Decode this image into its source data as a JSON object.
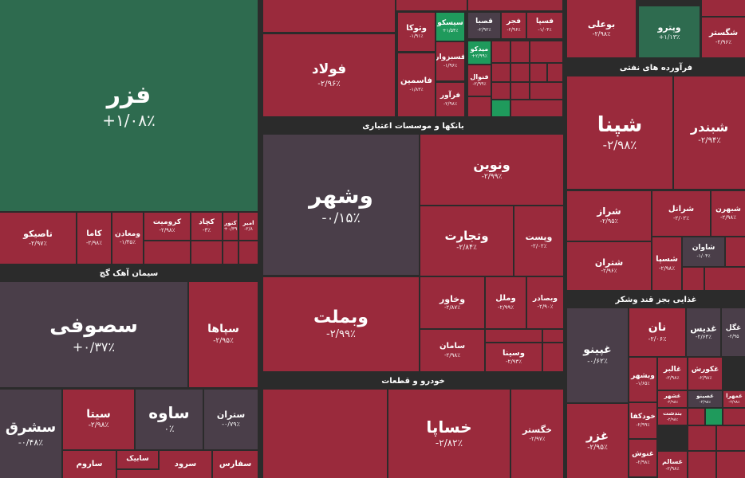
{
  "sectors": [
    "سیمان آهک گچ",
    "بانکها و موسسات اعتباری",
    "خودرو و قطعات",
    "فرآورده های نفتی",
    "غذایی بجز قند وشکر"
  ],
  "tiles": [
    {
      "name": "فزر",
      "change": "+۱/۰۸٪"
    },
    {
      "name": "تاصیکو",
      "change": "-۲/۹۷٪"
    },
    {
      "name": "کاما",
      "change": "-۲/۹۸٪"
    },
    {
      "name": "ومعادن",
      "change": "-۱/۳۵٪"
    },
    {
      "name": "کرومیت",
      "change": "-۲/۹۸٪"
    },
    {
      "name": "کچاد",
      "change": "-۳٪"
    },
    {
      "name": "کنور",
      "change": "+۰/۳۹"
    },
    {
      "name": "امیر",
      "change": "-۲/۸"
    },
    {
      "name": "سصوفی",
      "change": "+۰/۳۷٪"
    },
    {
      "name": "سپاها",
      "change": "-۲/۹۵٪"
    },
    {
      "name": "سشرق",
      "change": "-۰/۴۸٪"
    },
    {
      "name": "سیتا",
      "change": "-۲/۹۸٪"
    },
    {
      "name": "ساوه",
      "change": "۰٪"
    },
    {
      "name": "ستران",
      "change": "-۰/۷۹٪"
    },
    {
      "name": "ساروم",
      "change": null
    },
    {
      "name": "سابیک",
      "change": null
    },
    {
      "name": "سرود",
      "change": null
    },
    {
      "name": "سفارس",
      "change": null
    },
    {
      "name": "فولاد",
      "change": "-۲/۹۶٪"
    },
    {
      "name": "وتوکا",
      "change": "-۱/۹۱٪"
    },
    {
      "name": "سیسکو",
      "change": "+۱/۵۴٪"
    },
    {
      "name": "قصبا",
      "change": "-۲/۹۲٪"
    },
    {
      "name": "فجر",
      "change": "-۲/۹۶٪"
    },
    {
      "name": "فسپا",
      "change": "-۱/۰۴٪"
    },
    {
      "name": "فاسمین",
      "change": "-۱/۸۳٪"
    },
    {
      "name": "فسبزوار",
      "change": "-۱/۹۶٪"
    },
    {
      "name": "میدکو",
      "change": "+۲/۹۹٪"
    },
    {
      "name": "فنوال",
      "change": "-۲/۹۹٪"
    },
    {
      "name": "فرآور",
      "change": "-۲/۹۸٪"
    },
    {
      "name": "وشهر",
      "change": "-۰/۱۵٪"
    },
    {
      "name": "ونوین",
      "change": "-۲/۹۹٪"
    },
    {
      "name": "وتجارت",
      "change": "-۲/۸۴٪"
    },
    {
      "name": "وپست",
      "change": "-۲/۰۲٪"
    },
    {
      "name": "وبملت",
      "change": "-۲/۹۹٪"
    },
    {
      "name": "وخاور",
      "change": "-۲/۸۷٪"
    },
    {
      "name": "وملل",
      "change": "-۲/۹۹٪"
    },
    {
      "name": "وبصادر",
      "change": "-۲/۹۰٪"
    },
    {
      "name": "سامان",
      "change": "-۲/۹۸٪"
    },
    {
      "name": "وسینا",
      "change": "-۲/۹۳٪"
    },
    {
      "name": "خساپا",
      "change": "-۲/۸۲٪"
    },
    {
      "name": "خگستر",
      "change": "-۲/۹۷٪"
    },
    {
      "name": "بوعلی",
      "change": "-۲/۹۸٪"
    },
    {
      "name": "وپترو",
      "change": "+۱/۱۳٪"
    },
    {
      "name": "شگستر",
      "change": "-۲/۹۶٪"
    },
    {
      "name": "شپنا",
      "change": "-۲/۹۸٪"
    },
    {
      "name": "شبندر",
      "change": "-۲/۹۴٪"
    },
    {
      "name": "شراز",
      "change": "-۲/۹۵٪"
    },
    {
      "name": "شرانل",
      "change": "-۲/۰۲٪"
    },
    {
      "name": "شبهرن",
      "change": "-۲/۹۸٪"
    },
    {
      "name": "شتران",
      "change": "-۲/۹۶٪"
    },
    {
      "name": "شسپا",
      "change": "-۲/۹۸٪"
    },
    {
      "name": "شاوان",
      "change": "-۱/۰۴٪"
    },
    {
      "name": "غپینو",
      "change": "-۰/۶۲٪"
    },
    {
      "name": "نان",
      "change": "-۲/۰۶٪"
    },
    {
      "name": "غدیس",
      "change": "-۲/۶۴٪"
    },
    {
      "name": "غگل",
      "change": "-۲/۹۵"
    },
    {
      "name": "غزر",
      "change": "-۲/۹۵٪"
    },
    {
      "name": "وبشهر",
      "change": "-۱/۶۵٪"
    },
    {
      "name": "غالبر",
      "change": "-۲/۹۸٪"
    },
    {
      "name": "غکورش",
      "change": "-۲/۹۸٪"
    },
    {
      "name": "خودکفا",
      "change": "-۲/۹۹٪"
    },
    {
      "name": "غنوش",
      "change": "-۲/۹۸٪"
    },
    {
      "name": "غشهر",
      "change": "-۲/۹۸٪"
    },
    {
      "name": "غصینو",
      "change": "-۲/۹۸٪"
    },
    {
      "name": "غمهرا",
      "change": "-۲/۹۸٪"
    },
    {
      "name": "بندشت",
      "change": "-۲/۹۸٪"
    },
    {
      "name": "غسالم",
      "change": "-۲/۹۸٪"
    }
  ]
}
